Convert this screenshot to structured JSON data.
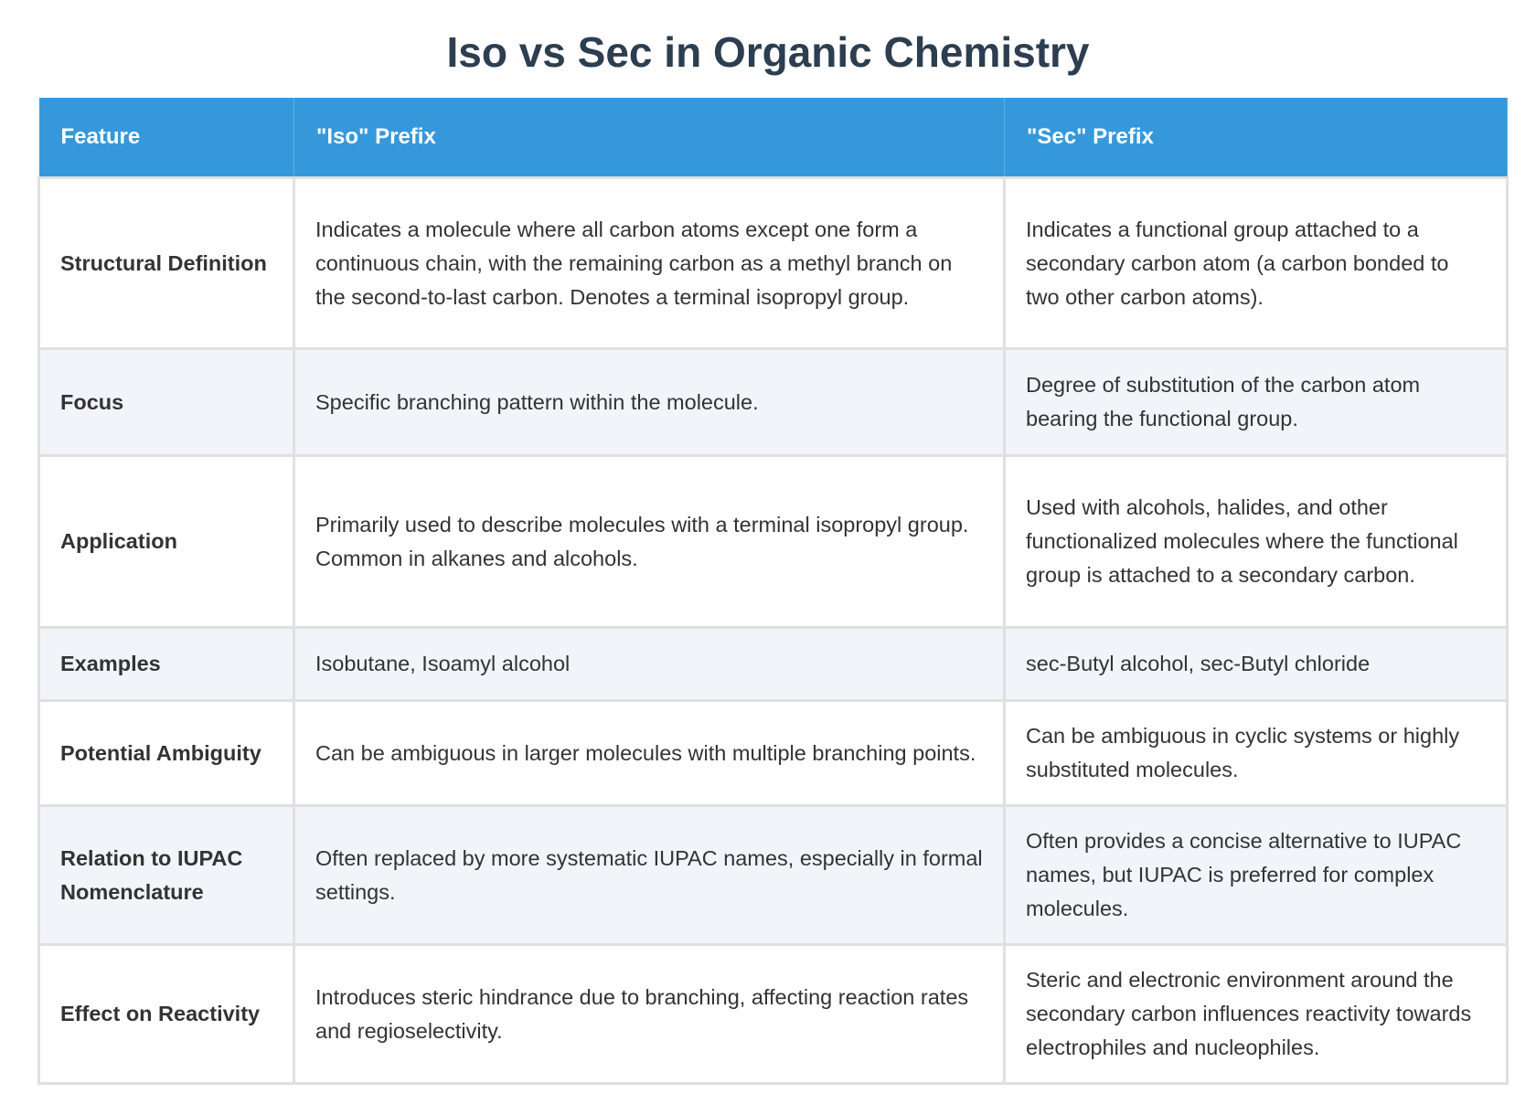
{
  "title": "Iso vs Sec in Organic Chemistry",
  "headers": [
    "Feature",
    "\"Iso\" Prefix",
    "\"Sec\" Prefix"
  ],
  "rows": [
    {
      "feature": "Structural Definition",
      "iso": "Indicates a molecule where all carbon atoms except one form a continuous chain, with the remaining carbon as a methyl branch on the second-to-last carbon. Denotes a terminal isopropyl group.",
      "sec": "Indicates a functional group attached to a secondary carbon atom (a carbon bonded to two other carbon atoms)."
    },
    {
      "feature": "Focus",
      "iso": "Specific branching pattern within the molecule.",
      "sec": "Degree of substitution of the carbon atom bearing the functional group."
    },
    {
      "feature": "Application",
      "iso": "Primarily used to describe molecules with a terminal isopropyl group. Common in alkanes and alcohols.",
      "sec": "Used with alcohols, halides, and other functionalized molecules where the functional group is attached to a secondary carbon."
    },
    {
      "feature": "Examples",
      "iso": "Isobutane, Isoamyl alcohol",
      "sec": "sec-Butyl alcohol, sec-Butyl chloride"
    },
    {
      "feature": "Potential Ambiguity",
      "iso": "Can be ambiguous in larger molecules with multiple branching points.",
      "sec": "Can be ambiguous in cyclic systems or highly substituted molecules."
    },
    {
      "feature": "Relation to IUPAC Nomenclature",
      "iso": "Often replaced by more systematic IUPAC names, especially in formal settings.",
      "sec": "Often provides a concise alternative to IUPAC names, but IUPAC is preferred for complex molecules."
    },
    {
      "feature": "Effect on Reactivity",
      "iso": "Introduces steric hindrance due to branching, affecting reaction rates and regioselectivity.",
      "sec": "Steric and electronic environment around the secondary carbon influences reactivity towards electrophiles and nucleophiles."
    }
  ],
  "colors": {
    "header": "#3598db",
    "title": "#2c3e50",
    "alt_row": "#f1f4f9"
  }
}
